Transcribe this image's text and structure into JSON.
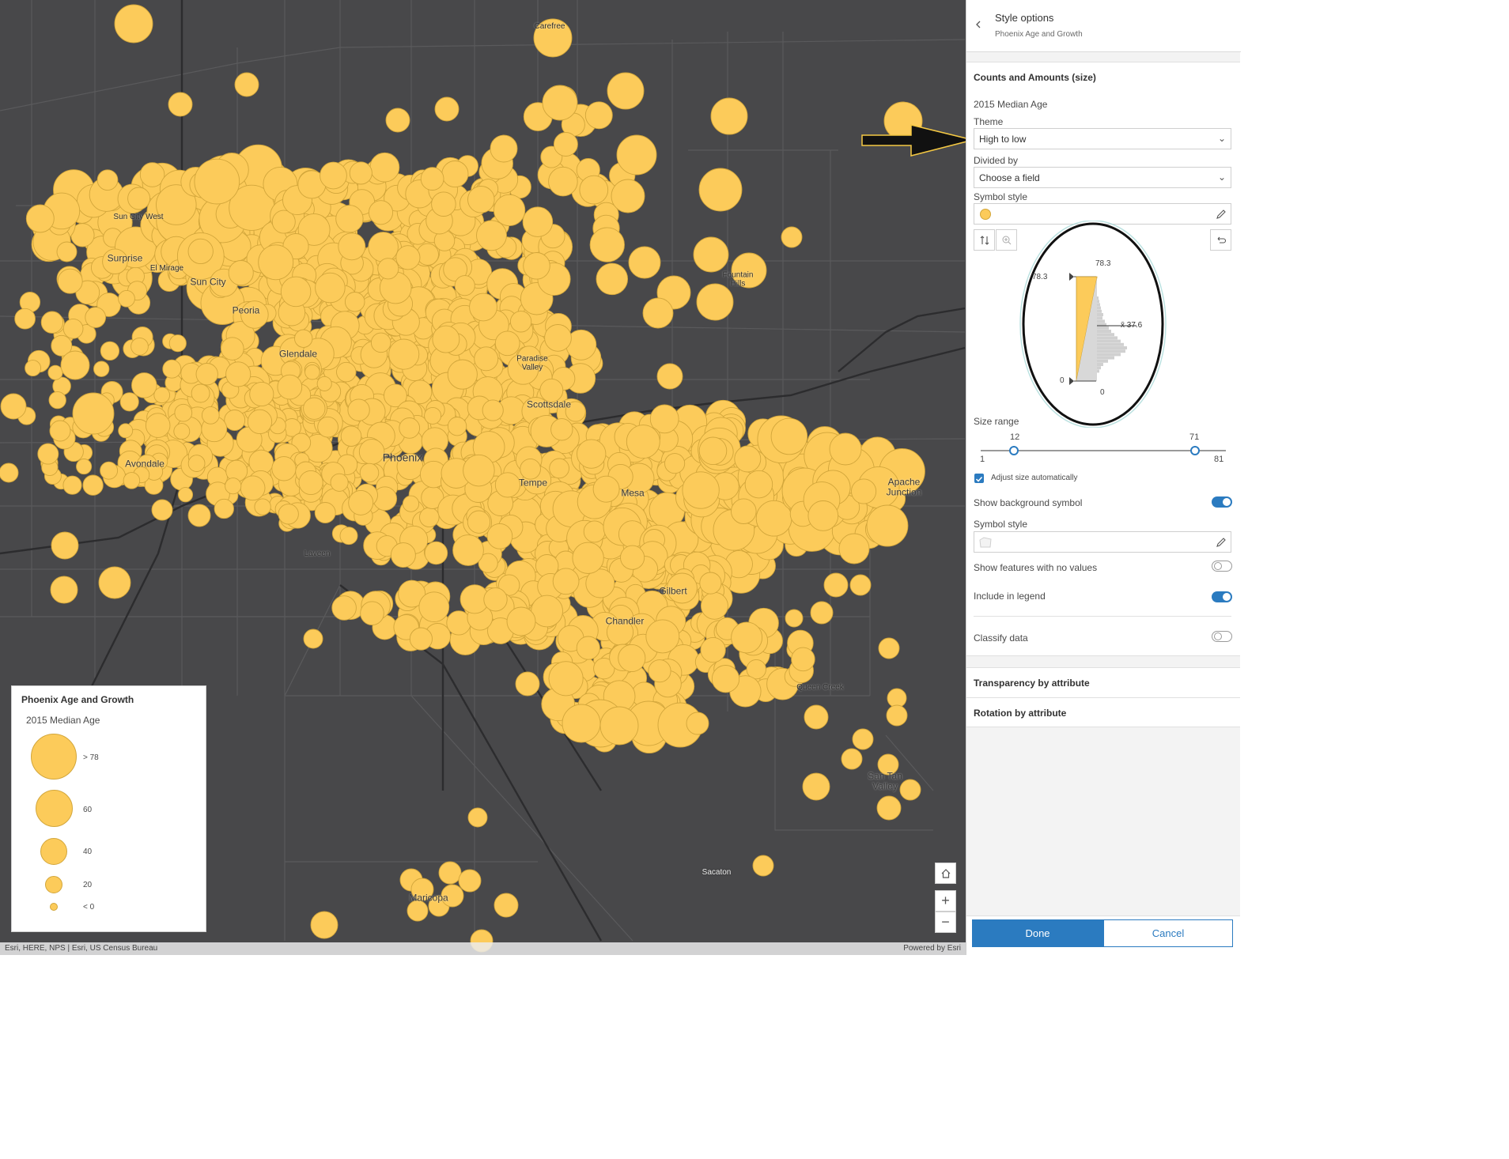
{
  "map": {
    "labels": [
      {
        "text": "Carefree",
        "size": "sm"
      },
      {
        "text": "Sun City West",
        "size": "sm"
      },
      {
        "text": "Surprise",
        "size": "md"
      },
      {
        "text": "El Mirage",
        "size": "sm"
      },
      {
        "text": "Sun City",
        "size": "md"
      },
      {
        "text": "Peoria",
        "size": "md"
      },
      {
        "text": "Glendale",
        "size": "md"
      },
      {
        "text": "Paradise Valley",
        "size": "sm"
      },
      {
        "text": "Fountain Hills",
        "size": "sm"
      },
      {
        "text": "Scottsdale",
        "size": "md"
      },
      {
        "text": "Avondale",
        "size": "md"
      },
      {
        "text": "Phoenix",
        "size": "lg"
      },
      {
        "text": "Tempe",
        "size": "md"
      },
      {
        "text": "Mesa",
        "size": "md"
      },
      {
        "text": "Apache Junction",
        "size": "md"
      },
      {
        "text": "Laveen",
        "size": "sm"
      },
      {
        "text": "Gilbert",
        "size": "md"
      },
      {
        "text": "Chandler",
        "size": "md"
      },
      {
        "text": "Queen Creek",
        "size": "sm"
      },
      {
        "text": "San Tan Valley",
        "size": "md"
      },
      {
        "text": "Sacaton",
        "size": "sm"
      },
      {
        "text": "Maricopa",
        "size": "md"
      }
    ],
    "symbol_color": "#fccb5a",
    "symbol_outline": "#d2a63b",
    "attribution_left": "Esri, HERE, NPS | Esri, US Census Bureau",
    "attribution_right": "Powered by Esri"
  },
  "legend": {
    "title": "Phoenix Age and Growth",
    "field": "2015 Median Age",
    "items": [
      {
        "label": "> 78"
      },
      {
        "label": "60"
      },
      {
        "label": "40"
      },
      {
        "label": "20"
      },
      {
        "label": "< 0"
      }
    ]
  },
  "panel": {
    "title": "Style options",
    "subtitle": "Phoenix Age and Growth",
    "section_title": "Counts and Amounts (size)",
    "field": "2015 Median Age",
    "theme_label": "Theme",
    "theme_value": "High to low",
    "divided_label": "Divided by",
    "divided_value": "Choose a field",
    "symbol_style_label": "Symbol style",
    "histogram": {
      "top_value": "78.3",
      "handle_top": "78.3",
      "mean": "x̄ 37.6",
      "handle_bottom": "0",
      "bottom_value": "0"
    },
    "size_range_label": "Size range",
    "size_min": "12",
    "size_max": "71",
    "range_min": "1",
    "range_max": "81",
    "adjust_auto_label": "Adjust size automatically",
    "adjust_auto_checked": true,
    "show_bg_label": "Show background symbol",
    "show_bg_on": true,
    "symbol_style2_label": "Symbol style",
    "show_no_values_label": "Show features with no values",
    "show_no_values_on": false,
    "include_legend_label": "Include in legend",
    "include_legend_on": true,
    "classify_label": "Classify data",
    "classify_on": false,
    "transparency_label": "Transparency by attribute",
    "rotation_label": "Rotation by attribute",
    "done_label": "Done",
    "cancel_label": "Cancel",
    "accent_color": "#2b7bc0"
  }
}
